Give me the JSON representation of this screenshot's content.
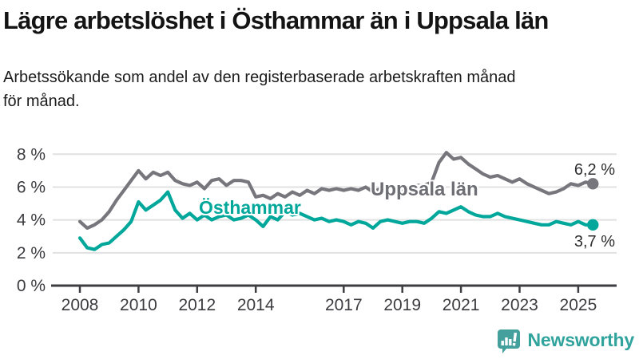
{
  "chart_data": {
    "type": "line",
    "title": "Lägre arbetslöshet i Östhammar än i Uppsala län",
    "subtitle_lines": [
      "Arbetssökande som andel av den registerbaserade arbetskraften månad",
      "för månad."
    ],
    "x_start": 2008,
    "x_step_years": 0.25,
    "x_end": 2025.5,
    "xticks": [
      2008,
      2010,
      2012,
      2014,
      2017,
      2019,
      2021,
      2023,
      2025
    ],
    "ytick_values": [
      0,
      2,
      4,
      6,
      8
    ],
    "ytick_labels": [
      "0 %",
      "2 %",
      "4 %",
      "6 %",
      "8 %"
    ],
    "ylim": [
      0,
      8.6
    ],
    "grid": "horizontal",
    "legend_position": "inline-labels",
    "series": [
      {
        "name": "Uppsala län",
        "color": "#76767c",
        "end_label": "6,2 %",
        "end_value": 6.2,
        "values": [
          3.9,
          3.5,
          3.7,
          4.0,
          4.5,
          5.2,
          5.8,
          6.4,
          7.0,
          6.5,
          6.9,
          6.7,
          6.9,
          6.4,
          6.2,
          6.1,
          6.3,
          5.9,
          6.4,
          6.5,
          6.1,
          6.4,
          6.4,
          6.3,
          5.4,
          5.5,
          5.3,
          5.6,
          5.4,
          5.7,
          5.5,
          5.8,
          5.6,
          5.9,
          5.8,
          5.9,
          5.8,
          5.9,
          5.8,
          6.0,
          5.7,
          5.9,
          6.0,
          5.9,
          5.8,
          6.0,
          6.1,
          6.1,
          6.3,
          7.5,
          8.1,
          7.7,
          7.8,
          7.4,
          7.1,
          6.8,
          6.6,
          6.7,
          6.5,
          6.3,
          6.5,
          6.2,
          6.0,
          5.8,
          5.6,
          5.7,
          5.9,
          6.2,
          6.1,
          6.3,
          6.2
        ]
      },
      {
        "name": "Östhammar",
        "color": "#00a79a",
        "end_label": "3,7 %",
        "end_value": 3.7,
        "values": [
          2.9,
          2.3,
          2.2,
          2.5,
          2.6,
          3.0,
          3.4,
          3.9,
          5.1,
          4.6,
          4.9,
          5.2,
          5.7,
          4.6,
          4.1,
          4.4,
          4.0,
          4.3,
          4.0,
          4.2,
          4.3,
          4.0,
          4.1,
          4.3,
          4.0,
          3.6,
          4.2,
          4.0,
          4.5,
          4.3,
          4.4,
          4.2,
          4.0,
          4.1,
          3.9,
          4.0,
          3.9,
          3.7,
          3.9,
          3.8,
          3.5,
          3.9,
          4.0,
          3.9,
          3.8,
          3.9,
          3.9,
          3.8,
          4.1,
          4.5,
          4.4,
          4.6,
          4.8,
          4.5,
          4.3,
          4.2,
          4.2,
          4.4,
          4.2,
          4.1,
          4.0,
          3.9,
          3.8,
          3.7,
          3.7,
          3.9,
          3.8,
          3.7,
          3.9,
          3.7,
          3.7
        ]
      }
    ],
    "colors": {
      "gridline": "#e1e1e1",
      "axis": "#3e3e42",
      "tick_text": "#3c3c40"
    }
  },
  "brand": {
    "name": "Newsworthy",
    "color": "#30a39d",
    "icon": "bar-chart-pin-icon"
  }
}
